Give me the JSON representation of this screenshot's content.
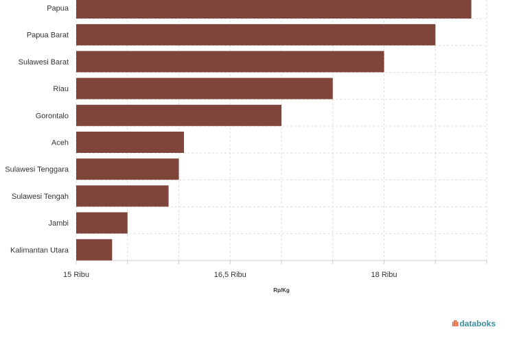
{
  "chart_data": {
    "type": "bar",
    "orientation": "horizontal",
    "categories": [
      "Papua",
      "Papua Barat",
      "Sulawesi Barat",
      "Riau",
      "Gorontalo",
      "Aceh",
      "Sulawesi Tenggara",
      "Sulawesi Tengah",
      "Jambi",
      "Kalimantan Utara"
    ],
    "values": [
      18.85,
      18.5,
      18.0,
      17.5,
      17.0,
      16.05,
      16.0,
      15.9,
      15.5,
      15.35
    ],
    "xlim": [
      15,
      19
    ],
    "xticks": [
      15,
      15.5,
      16,
      16.5,
      17,
      17.5,
      18,
      18.5,
      19
    ],
    "xtick_labels": [
      {
        "value": 15,
        "label": "15 Ribu"
      },
      {
        "value": 16.5,
        "label": "16,5 Ribu"
      },
      {
        "value": 18,
        "label": "18 Ribu"
      }
    ],
    "xlabel": "Rp/Kg",
    "ylabel": "",
    "title": "",
    "grid": true,
    "bar_color": "#7f453b"
  },
  "brand": {
    "icon": "signal-wave-icon",
    "name": "databoks"
  }
}
